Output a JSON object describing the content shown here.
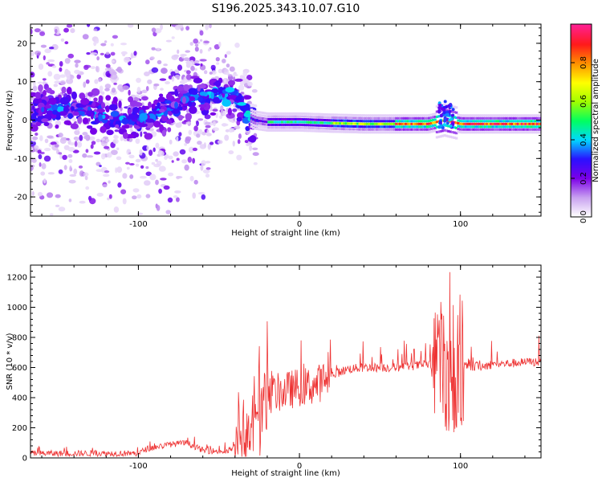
{
  "title": "S196.2025.343.10.07.G10",
  "chart_data": [
    {
      "type": "heatmap",
      "name": "spectrogram",
      "xlabel": "Height of straight line (km)",
      "ylabel": "Frequency (Hz)",
      "xlim": [
        -167,
        150
      ],
      "ylim": [
        -25,
        25
      ],
      "xticks": [
        -100,
        0,
        100
      ],
      "yticks": [
        -20,
        -10,
        0,
        10,
        20
      ],
      "colorbar": {
        "label": "Normalized spectral amplitude",
        "range": [
          0,
          1
        ],
        "ticks": [
          "0.0",
          "0.2",
          "0.4",
          "0.6",
          "0.8"
        ],
        "colors": [
          "#ffffff",
          "#c8a0f0",
          "#7b00e8",
          "#2a10ff",
          "#00d8ff",
          "#00ff60",
          "#a0ff00",
          "#ffff00",
          "#ff9000",
          "#ff1a1a",
          "#ff2090"
        ]
      },
      "ridge": {
        "x": [
          -160,
          -140,
          -120,
          -100,
          -80,
          -65,
          -50,
          -40,
          -35,
          -30,
          -28,
          -20,
          0,
          20,
          40,
          60,
          80,
          90,
          100,
          120,
          150
        ],
        "y": [
          2.5,
          3,
          1,
          0,
          3,
          6,
          6.5,
          6,
          4,
          0.5,
          0,
          -0.5,
          -0.5,
          -0.8,
          -1,
          -1,
          -1,
          0,
          -1,
          -1,
          -1
        ]
      }
    },
    {
      "type": "line",
      "name": "snr",
      "xlabel": "Height of straight line (km)",
      "ylabel": "SNR (10 * v/v)",
      "xlim": [
        -167,
        150
      ],
      "ylim": [
        0,
        1280
      ],
      "xticks": [
        -100,
        0,
        100
      ],
      "yticks": [
        0,
        200,
        400,
        600,
        800,
        1000,
        1200
      ],
      "color": "#ee3333",
      "envelope": {
        "x": [
          -167,
          -100,
          -95,
          -80,
          -70,
          -60,
          -45,
          -38,
          -30,
          -20,
          -10,
          0,
          10,
          20,
          30,
          40,
          60,
          80,
          85,
          90,
          95,
          100,
          105,
          120,
          150
        ],
        "y": [
          30,
          30,
          60,
          90,
          100,
          50,
          40,
          90,
          300,
          420,
          440,
          470,
          480,
          550,
          590,
          600,
          600,
          620,
          580,
          620,
          600,
          620,
          600,
          620,
          640
        ]
      },
      "bursts": [
        {
          "x": [
            -40,
            -20
          ],
          "amp": 230
        },
        {
          "x": [
            82,
            102
          ],
          "amp": 420
        }
      ]
    }
  ]
}
